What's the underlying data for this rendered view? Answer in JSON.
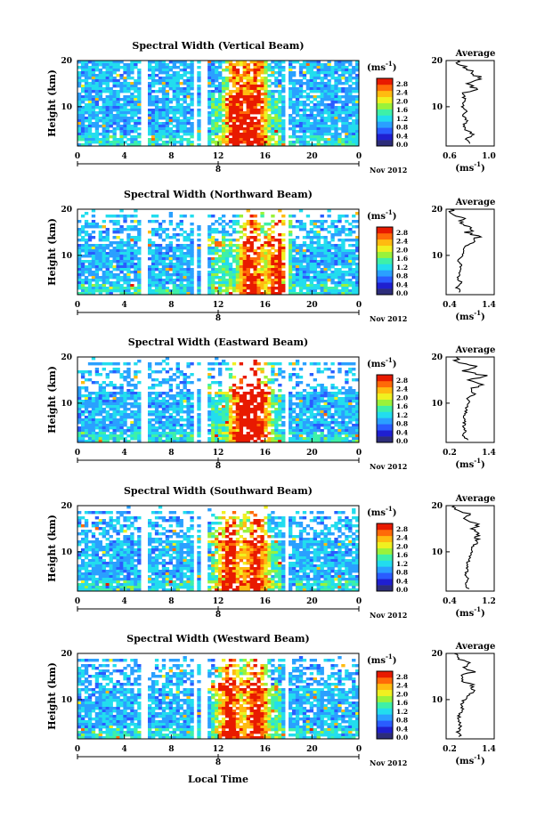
{
  "figure": {
    "x_axis_title": "Local Time",
    "date_label": "Nov 2012",
    "time_ticks": [
      "0",
      "4",
      "8",
      "12",
      "16",
      "20",
      "0"
    ],
    "date_ticks": [
      "8"
    ],
    "height_axis_title": "Height (km)",
    "height_ticks": [
      "20",
      "10"
    ],
    "colorbar_unit_base": "(ms",
    "colorbar_unit_exp": "-1",
    "colorbar_unit_end": ")",
    "colorbar_ticks": [
      "2.8",
      "2.4",
      "2.0",
      "1.6",
      "1.2",
      "0.8",
      "0.4",
      "0.0"
    ],
    "average_title": "Average",
    "average_unit_base": "(ms",
    "average_unit_exp": "-1",
    "average_unit_end": ")"
  },
  "colors": {
    "colorbar": [
      "#2d2d7a",
      "#1f1fd0",
      "#2a5cff",
      "#2aa0ff",
      "#22ddee",
      "#3ef0a8",
      "#9af23a",
      "#f0f020",
      "#ffbb10",
      "#ff6a08",
      "#e81a00"
    ]
  },
  "chart_data": [
    {
      "type": "heatmap",
      "title": "Spectral Width (Vertical Beam)",
      "x_range_hours": [
        0,
        24
      ],
      "y_range_km": [
        1.5,
        20
      ],
      "z_range_ms": [
        0,
        2.8
      ],
      "data_gaps_hours": [
        [
          5.5,
          5.9
        ],
        [
          9.8,
          10.15
        ],
        [
          10.6,
          10.95
        ],
        [
          17.8,
          18.05
        ],
        [
          19.4,
          19.6
        ]
      ],
      "enhanced_width_times_hours": [
        13.5,
        15.2
      ],
      "average_profile": {
        "xlim": [
          0.5,
          1.1
        ],
        "xticks": [
          "0.6",
          "1.0"
        ],
        "yticks": [
          "20",
          "10"
        ],
        "height_km": [
          2,
          3,
          4,
          5,
          6,
          7,
          8,
          9,
          10,
          11,
          12,
          13,
          14,
          15,
          16,
          17,
          18,
          19,
          20
        ],
        "width_ms": [
          0.78,
          0.74,
          0.84,
          0.75,
          0.72,
          0.76,
          0.7,
          0.75,
          0.69,
          0.73,
          0.72,
          0.74,
          0.88,
          0.72,
          0.98,
          0.83,
          0.78,
          0.68,
          0.64
        ]
      }
    },
    {
      "type": "heatmap",
      "title": "Spectral Width (Northward Beam)",
      "x_range_hours": [
        0,
        24
      ],
      "y_range_km": [
        1.5,
        20
      ],
      "z_range_ms": [
        0,
        2.8
      ],
      "data_gaps_hours": [
        [
          5.5,
          5.9
        ],
        [
          9.8,
          10.15
        ],
        [
          10.6,
          10.95
        ],
        [
          17.8,
          18.05
        ]
      ],
      "enhanced_width_times_hours": [
        14.8,
        17.1
      ],
      "average_profile": {
        "xlim": [
          0.4,
          1.4
        ],
        "xticks": [
          "0.4",
          "1.4"
        ],
        "yticks": [
          "20",
          "10"
        ],
        "height_km": [
          2,
          3,
          4,
          5,
          6,
          7,
          8,
          9,
          10,
          11,
          12,
          13,
          14,
          15,
          16,
          17,
          18,
          19,
          20
        ],
        "width_ms": [
          0.7,
          0.63,
          0.72,
          0.62,
          0.68,
          0.72,
          0.7,
          0.66,
          0.78,
          0.74,
          0.8,
          0.95,
          1.05,
          0.85,
          0.98,
          0.7,
          0.8,
          0.55,
          0.48
        ]
      }
    },
    {
      "type": "heatmap",
      "title": "Spectral Width (Eastward Beam)",
      "x_range_hours": [
        0,
        24
      ],
      "y_range_km": [
        1.5,
        20
      ],
      "z_range_ms": [
        0,
        2.8
      ],
      "data_gaps_hours": [
        [
          5.5,
          5.9
        ],
        [
          9.8,
          10.15
        ],
        [
          10.6,
          10.95
        ],
        [
          17.8,
          18.05
        ]
      ],
      "enhanced_width_times_hours": [
        14.0,
        15.4
      ],
      "average_profile": {
        "xlim": [
          0.2,
          1.4
        ],
        "xticks": [
          "0.2",
          "1.4"
        ],
        "yticks": [
          "20",
          "10"
        ],
        "height_km": [
          2,
          3,
          4,
          5,
          6,
          7,
          8,
          9,
          10,
          11,
          12,
          13,
          14,
          15,
          16,
          17,
          18,
          19,
          20
        ],
        "width_ms": [
          0.72,
          0.65,
          0.7,
          0.64,
          0.66,
          0.62,
          0.7,
          0.68,
          0.8,
          0.72,
          0.95,
          0.85,
          1.05,
          0.78,
          1.15,
          0.6,
          0.95,
          0.5,
          0.45
        ]
      }
    },
    {
      "type": "heatmap",
      "title": "Spectral Width (Southward Beam)",
      "x_range_hours": [
        0,
        24
      ],
      "y_range_km": [
        1.5,
        20
      ],
      "z_range_ms": [
        0,
        2.8
      ],
      "data_gaps_hours": [
        [
          5.5,
          5.9
        ],
        [
          9.8,
          10.15
        ],
        [
          10.6,
          10.95
        ],
        [
          17.8,
          18.05
        ]
      ],
      "enhanced_width_times_hours": [
        13.0,
        15.2
      ],
      "average_profile": {
        "xlim": [
          0.2,
          1.2
        ],
        "xticks": [
          "0.4",
          "1.2"
        ],
        "yticks": [
          "20",
          "10"
        ],
        "height_km": [
          2,
          3,
          4,
          5,
          6,
          7,
          8,
          9,
          10,
          11,
          12,
          13,
          14,
          15,
          16,
          17,
          18,
          19,
          20
        ],
        "width_ms": [
          0.65,
          0.62,
          0.68,
          0.6,
          0.64,
          0.62,
          0.66,
          0.7,
          0.76,
          0.72,
          0.88,
          0.8,
          0.95,
          0.78,
          0.9,
          0.62,
          0.7,
          0.45,
          0.38
        ]
      }
    },
    {
      "type": "heatmap",
      "title": "Spectral Width (Westward Beam)",
      "x_range_hours": [
        0,
        24
      ],
      "y_range_km": [
        1.5,
        20
      ],
      "z_range_ms": [
        0,
        2.8
      ],
      "data_gaps_hours": [
        [
          5.5,
          5.9
        ],
        [
          9.8,
          10.15
        ],
        [
          10.6,
          10.95
        ],
        [
          17.8,
          18.05
        ]
      ],
      "enhanced_width_times_hours": [
        13.0,
        15.2
      ],
      "average_profile": {
        "xlim": [
          0.2,
          1.4
        ],
        "xticks": [
          "0.2",
          "1.4"
        ],
        "yticks": [
          "20",
          "10"
        ],
        "height_km": [
          2,
          3,
          4,
          5,
          6,
          7,
          8,
          9,
          10,
          11,
          12,
          13,
          14,
          15,
          16,
          17,
          18,
          19,
          20
        ],
        "width_ms": [
          0.55,
          0.5,
          0.56,
          0.52,
          0.5,
          0.55,
          0.62,
          0.58,
          0.65,
          0.75,
          0.95,
          0.85,
          0.65,
          0.52,
          0.9,
          0.58,
          0.78,
          0.45,
          0.4
        ]
      }
    }
  ]
}
